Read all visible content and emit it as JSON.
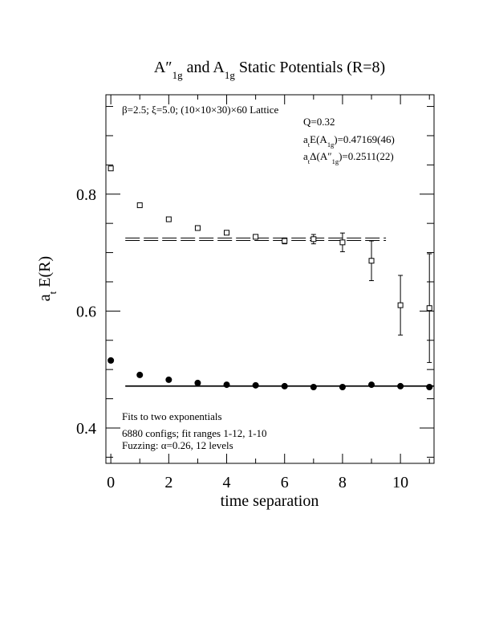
{
  "chart_data": {
    "type": "scatter",
    "title": [
      "A″",
      "1g",
      " and A",
      "1g",
      " Static Potentials (R=8)"
    ],
    "x_label": "time separation",
    "y_label": [
      "a",
      "t",
      " E(R)"
    ],
    "xlim": [
      -0.17,
      11.16
    ],
    "ylim": [
      0.3395,
      0.97
    ],
    "xticks": [
      0,
      2,
      4,
      6,
      8,
      10
    ],
    "xminor": [
      1,
      3,
      5,
      7,
      9,
      11
    ],
    "yticks": [
      0.4,
      0.6,
      0.8
    ],
    "yminor": [
      0.35,
      0.45,
      0.5,
      0.55,
      0.65,
      0.7,
      0.75,
      0.85,
      0.9,
      0.95
    ],
    "series": [
      {
        "name": "A1g",
        "marker": "filled-circle",
        "color": "#000000",
        "x": [
          0,
          1,
          2,
          3,
          4,
          5,
          6,
          7,
          8,
          9,
          10,
          11
        ],
        "values": [
          0.5155,
          0.4907,
          0.4825,
          0.477,
          0.474,
          0.473,
          0.4715,
          0.47,
          0.47,
          0.474,
          0.4715,
          0.47
        ],
        "errors": [
          0.001,
          0.001,
          0.001,
          0.001,
          0.001,
          0.001,
          0.001,
          0.001,
          0.001,
          0.002,
          0.002,
          0.002
        ],
        "fit": {
          "value": 0.47169,
          "error": 0.00046,
          "xrange": [
            0.5,
            11.16
          ],
          "dash": false
        }
      },
      {
        "name": "A″1g",
        "marker": "open-square",
        "color": "#000000",
        "x": [
          0,
          1,
          2,
          3,
          4,
          5,
          6,
          7,
          8,
          9,
          10,
          11
        ],
        "values": [
          0.844,
          0.781,
          0.757,
          0.742,
          0.734,
          0.727,
          0.72,
          0.723,
          0.7175,
          0.686,
          0.61,
          0.605
        ],
        "errors": [
          0.001,
          0.001,
          0.001,
          0.002,
          0.002,
          0.003,
          0.005,
          0.008,
          0.016,
          0.034,
          0.051,
          0.093
        ],
        "fit": {
          "value": 0.7228,
          "error": 0.0022,
          "xrange": [
            0.5,
            9.5
          ],
          "dash": true
        }
      }
    ],
    "annotations": [
      [
        "β=2.5; ξ=5.0; (10×10×30)×60 Lattice"
      ],
      [
        "Q=0.32"
      ],
      [
        "a",
        "t",
        "E(A",
        "1g",
        ")=0.47169(46)"
      ],
      [
        "a",
        "t",
        "Δ(A″",
        "1g",
        ")=0.2511(22)"
      ],
      [
        "Fits to two exponentials"
      ],
      [
        "6880 configs; fit ranges 1-12, 1-10"
      ],
      [
        "Fuzzing: α=0.26, 12 levels"
      ]
    ]
  }
}
